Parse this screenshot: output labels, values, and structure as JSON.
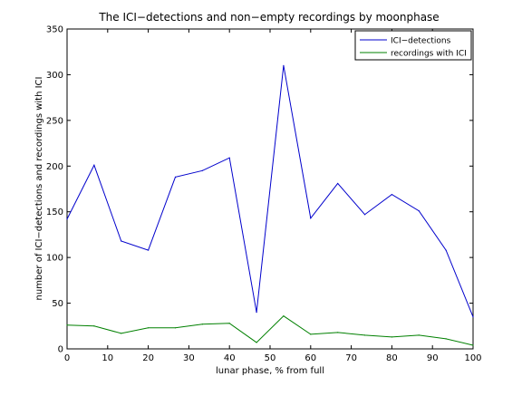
{
  "chart_data": {
    "type": "line",
    "title": "The ICI−detections and non−empty recordings by moonphase",
    "xlabel": "lunar phase, % from full",
    "ylabel": "number of ICI−detections and recordings with ICI",
    "xlim": [
      0,
      100
    ],
    "ylim": [
      0,
      350
    ],
    "xticks": [
      0,
      10,
      20,
      30,
      40,
      50,
      60,
      70,
      80,
      90,
      100
    ],
    "yticks": [
      0,
      50,
      100,
      150,
      200,
      250,
      300,
      350
    ],
    "grid": false,
    "legend_position": "top-right",
    "x": [
      0,
      6.67,
      13.33,
      20,
      26.67,
      33.33,
      40,
      46.67,
      53.33,
      60,
      66.67,
      73.33,
      80,
      86.67,
      93.33,
      100
    ],
    "series": [
      {
        "name": "ICI−detections",
        "color": "#0000cc",
        "values": [
          142,
          201,
          118,
          108,
          188,
          195,
          209,
          40,
          310,
          143,
          181,
          147,
          169,
          151,
          108,
          35
        ]
      },
      {
        "name": "recordings with ICI",
        "color": "#008000",
        "values": [
          26,
          25,
          17,
          23,
          23,
          27,
          28,
          7,
          36,
          16,
          18,
          15,
          13,
          15,
          11,
          4
        ]
      }
    ]
  }
}
